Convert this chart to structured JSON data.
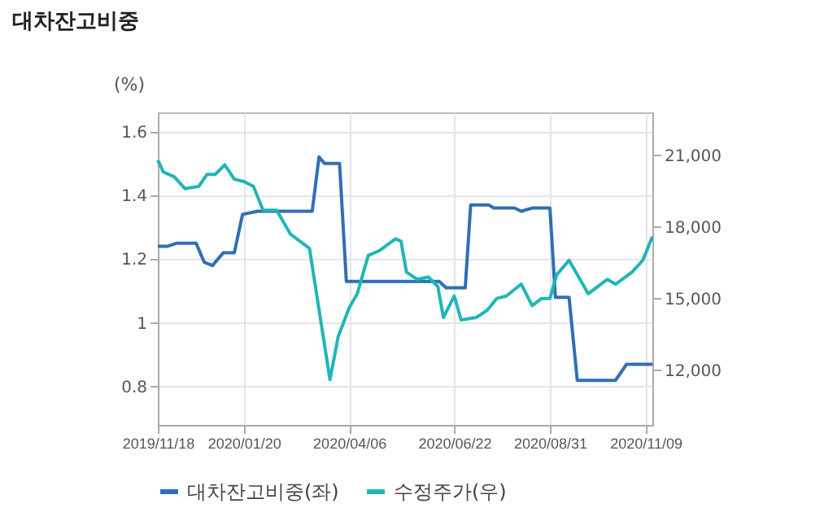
{
  "chart_data": {
    "type": "line",
    "title": "대차잔고비중",
    "ylabel": "(%)",
    "xlim": [
      "2019-11-18",
      "2020-11-14"
    ],
    "xticks": [
      {
        "value": "2019-11-18",
        "label": "2019/11/18"
      },
      {
        "value": "2020-01-20",
        "label": "2020/01/20"
      },
      {
        "value": "2020-04-06",
        "label": "2020/04/06"
      },
      {
        "value": "2020-06-22",
        "label": "2020/06/22"
      },
      {
        "value": "2020-08-31",
        "label": "2020/08/31"
      },
      {
        "value": "2020-11-09",
        "label": "2020/11/09"
      }
    ],
    "ylim": [
      0.68,
      1.66
    ],
    "yticks": [
      0.8,
      1,
      1.2,
      1.4,
      1.6
    ],
    "y2lim": [
      9700,
      22800
    ],
    "y2ticks": [
      {
        "value": 12000,
        "label": "12,000"
      },
      {
        "value": 15000,
        "label": "15,000"
      },
      {
        "value": 18000,
        "label": "18,000"
      },
      {
        "value": 21000,
        "label": "21,000"
      }
    ],
    "grid": true,
    "legend": "bottom",
    "line_style": "solid",
    "marker": "none",
    "series": [
      {
        "name": "대차잔고비중(좌)",
        "color": "#2f6fb5",
        "axis": "y",
        "x": [
          "2019-11-18",
          "2019-11-25",
          "2019-12-02",
          "2019-12-16",
          "2019-12-22",
          "2019-12-28",
          "2020-01-05",
          "2020-01-13",
          "2020-01-19",
          "2020-01-30",
          "2020-02-03",
          "2020-03-10",
          "2020-03-15",
          "2020-03-19",
          "2020-03-30",
          "2020-04-04",
          "2020-05-10",
          "2020-06-11",
          "2020-06-16",
          "2020-06-30",
          "2020-07-04",
          "2020-07-10",
          "2020-07-17",
          "2020-07-21",
          "2020-08-05",
          "2020-08-10",
          "2020-08-18",
          "2020-08-31",
          "2020-09-04",
          "2020-09-14",
          "2020-09-20",
          "2020-10-18",
          "2020-10-26",
          "2020-11-14"
        ],
        "values": [
          1.24,
          1.24,
          1.25,
          1.25,
          1.19,
          1.18,
          1.22,
          1.22,
          1.34,
          1.35,
          1.35,
          1.35,
          1.52,
          1.5,
          1.5,
          1.13,
          1.13,
          1.13,
          1.11,
          1.11,
          1.37,
          1.37,
          1.37,
          1.36,
          1.36,
          1.35,
          1.36,
          1.36,
          1.08,
          1.08,
          0.82,
          0.82,
          0.87,
          0.87
        ]
      },
      {
        "name": "수정주가(우)",
        "color": "#20b5b8",
        "axis": "y2",
        "x": [
          "2019-11-18",
          "2019-11-22",
          "2019-11-30",
          "2019-12-08",
          "2019-12-18",
          "2019-12-24",
          "2019-12-30",
          "2020-01-06",
          "2020-01-13",
          "2020-01-20",
          "2020-01-27",
          "2020-02-03",
          "2020-02-13",
          "2020-02-23",
          "2020-03-08",
          "2020-03-23",
          "2020-03-29",
          "2020-04-06",
          "2020-04-12",
          "2020-04-20",
          "2020-04-28",
          "2020-05-10",
          "2020-05-14",
          "2020-05-18",
          "2020-05-26",
          "2020-06-03",
          "2020-06-10",
          "2020-06-14",
          "2020-06-22",
          "2020-06-27",
          "2020-07-08",
          "2020-07-16",
          "2020-07-23",
          "2020-07-30",
          "2020-08-10",
          "2020-08-18",
          "2020-08-25",
          "2020-08-31",
          "2020-09-05",
          "2020-09-14",
          "2020-09-28",
          "2020-10-12",
          "2020-10-18",
          "2020-10-30",
          "2020-11-07",
          "2020-11-14"
        ],
        "values": [
          20800,
          20300,
          20100,
          19600,
          19700,
          20200,
          20200,
          20600,
          20000,
          19900,
          19700,
          18700,
          18700,
          17700,
          17100,
          11600,
          13400,
          14600,
          15200,
          16800,
          17000,
          17500,
          17400,
          16100,
          15800,
          15900,
          15500,
          14200,
          15100,
          14100,
          14200,
          14500,
          15000,
          15100,
          15600,
          14700,
          15000,
          15000,
          16000,
          16600,
          15200,
          15800,
          15600,
          16100,
          16600,
          17600
        ]
      }
    ]
  }
}
